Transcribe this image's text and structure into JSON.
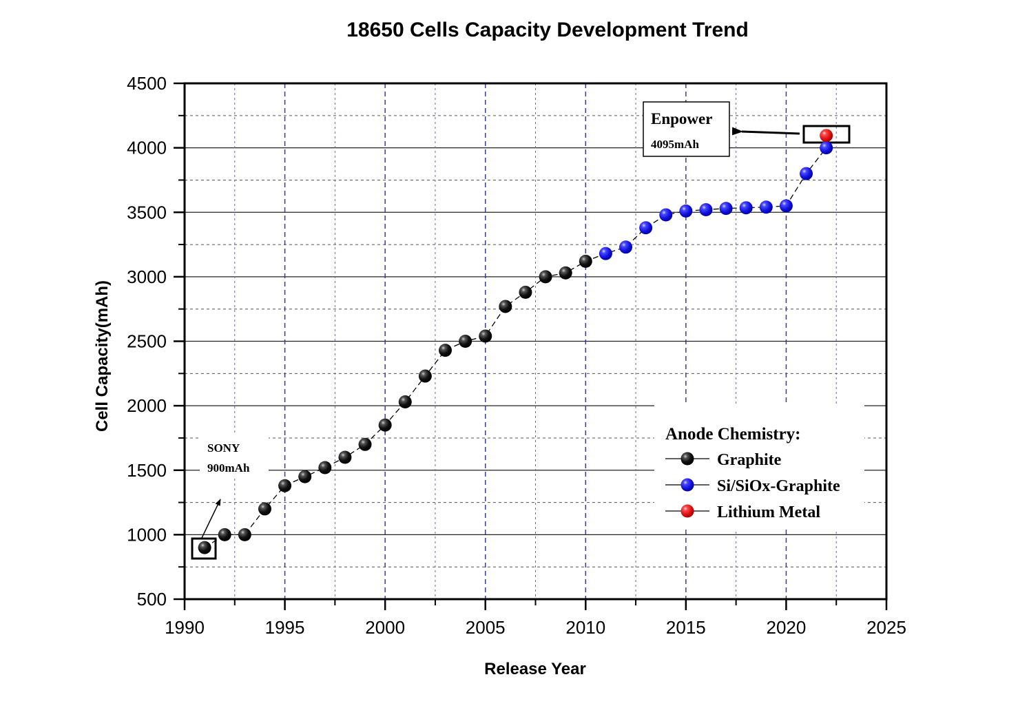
{
  "chart_data": {
    "type": "scatter",
    "title": "18650 Cells Capacity Development Trend",
    "xlabel": "Release Year",
    "ylabel": "Cell Capacity(mAh)",
    "xlim": [
      1990,
      2025
    ],
    "ylim": [
      500,
      4500
    ],
    "xticks": [
      1990,
      1995,
      2000,
      2005,
      2010,
      2015,
      2020,
      2025
    ],
    "yticks": [
      500,
      1000,
      1500,
      2000,
      2500,
      3000,
      3500,
      4000,
      4500
    ],
    "x_minor_step": 2.5,
    "y_minor_step": 250,
    "grid": true,
    "legend": {
      "title": "Anode Chemistry:",
      "placement": "bottom-right"
    },
    "series": [
      {
        "name": "Graphite",
        "color": "#111111",
        "points": [
          [
            1991,
            900
          ],
          [
            1992,
            1000
          ],
          [
            1993,
            1000
          ],
          [
            1994,
            1200
          ],
          [
            1995,
            1380
          ],
          [
            1996,
            1450
          ],
          [
            1997,
            1520
          ],
          [
            1998,
            1600
          ],
          [
            1999,
            1700
          ],
          [
            2000,
            1850
          ],
          [
            2001,
            2030
          ],
          [
            2002,
            2230
          ],
          [
            2003,
            2430
          ],
          [
            2004,
            2500
          ],
          [
            2005,
            2540
          ],
          [
            2006,
            2770
          ],
          [
            2007,
            2880
          ],
          [
            2008,
            3000
          ],
          [
            2009,
            3030
          ],
          [
            2010,
            3120
          ]
        ]
      },
      {
        "name": "Si/SiOx-Graphite",
        "color": "#1a1aee",
        "points": [
          [
            2011,
            3180
          ],
          [
            2012,
            3230
          ],
          [
            2013,
            3380
          ],
          [
            2014,
            3480
          ],
          [
            2015,
            3510
          ],
          [
            2016,
            3520
          ],
          [
            2017,
            3530
          ],
          [
            2018,
            3535
          ],
          [
            2019,
            3540
          ],
          [
            2020,
            3550
          ],
          [
            2021,
            3800
          ],
          [
            2022,
            4000
          ]
        ]
      },
      {
        "name": "Lithium Metal",
        "color": "#ee1a1a",
        "points": [
          [
            2022,
            4095
          ]
        ]
      }
    ],
    "annotations": [
      {
        "id": "sony",
        "line1": "SONY",
        "line2": "900mAh",
        "target": [
          1991,
          900
        ]
      },
      {
        "id": "enpower",
        "line1": "Enpower",
        "line2": "4095mAh",
        "target": [
          2022,
          4095
        ]
      }
    ]
  }
}
